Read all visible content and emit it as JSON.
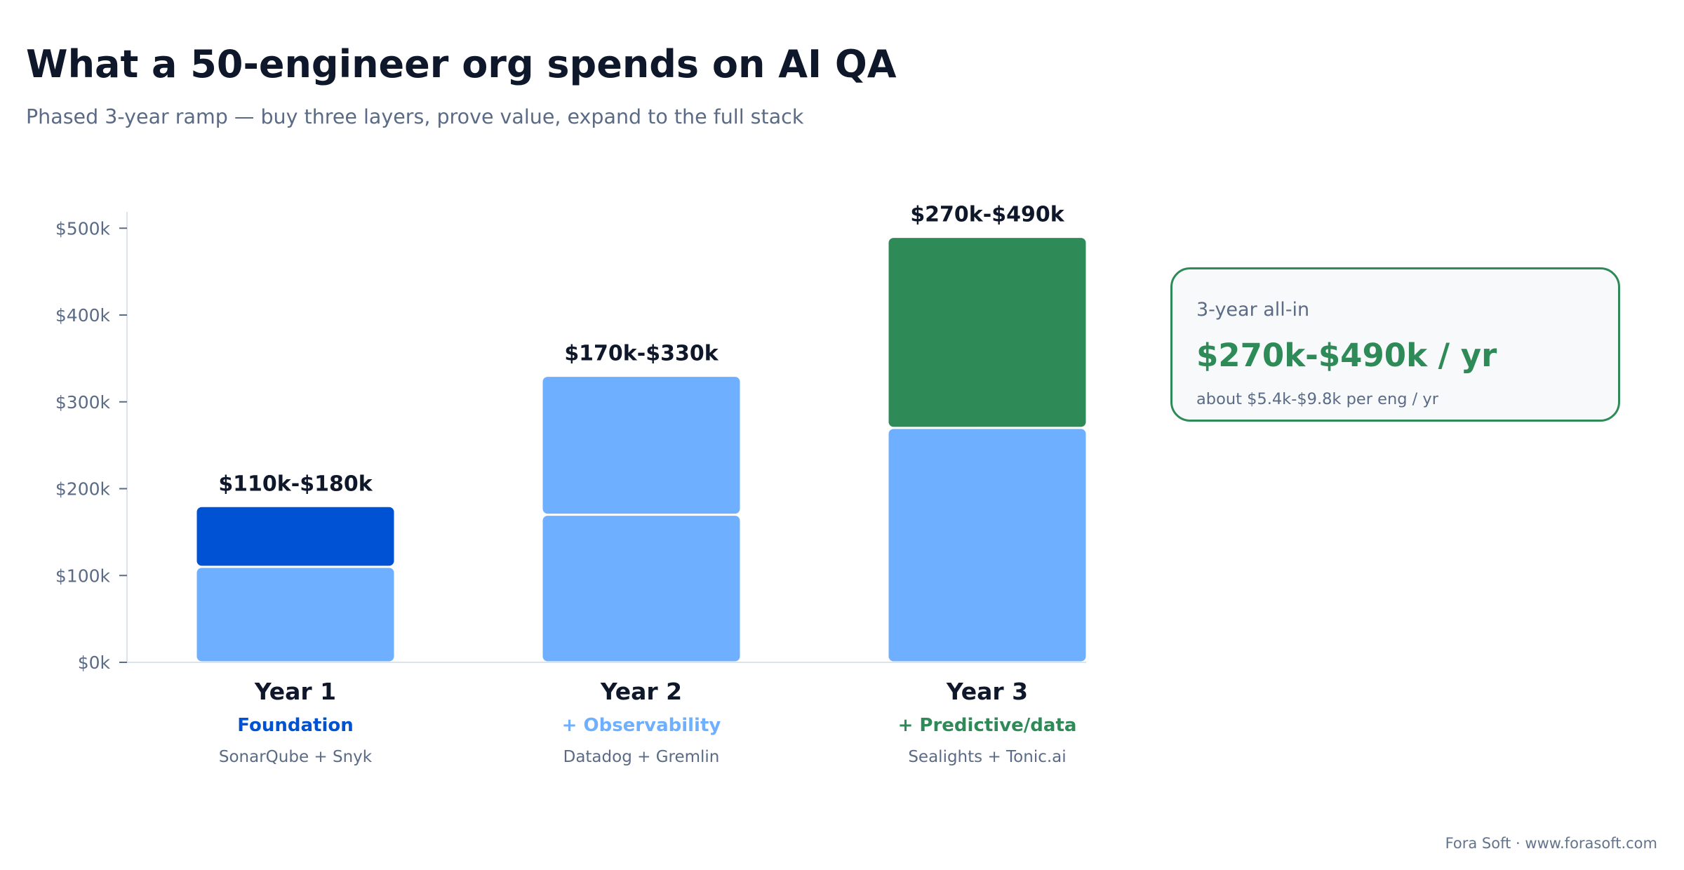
{
  "header": {
    "title": "What a 50-engineer org spends on AI QA",
    "subtitle": "Phased 3-year ramp — buy three layers, prove value, expand to the full stack"
  },
  "chart_data": {
    "type": "bar",
    "stacked": true,
    "ylim": [
      0,
      500
    ],
    "yticks": [
      0,
      100,
      200,
      300,
      400,
      500
    ],
    "ytick_labels": [
      "$0k",
      "$100k",
      "$200k",
      "$300k",
      "$400k",
      "$500k"
    ],
    "grid": false,
    "categories": [
      {
        "name": "Year 1",
        "phase": "Foundation",
        "tools": "SonarQube + Snyk",
        "total_label": "$110k-$180k",
        "accent": "#0052d4",
        "segments": [
          {
            "from": 0,
            "to": 110,
            "color": "#6eb0ff"
          },
          {
            "from": 110,
            "to": 180,
            "color": "#0052d4"
          }
        ]
      },
      {
        "name": "Year 2",
        "phase": "+ Observability",
        "tools": "Datadog + Gremlin",
        "total_label": "$170k-$330k",
        "accent": "#6eb0ff",
        "segments": [
          {
            "from": 0,
            "to": 170,
            "color": "#6eb0ff"
          },
          {
            "from": 170,
            "to": 330,
            "color": "#6eb0ff"
          }
        ]
      },
      {
        "name": "Year 3",
        "phase": "+ Predictive/data",
        "tools": "Sealights + Tonic.ai",
        "total_label": "$270k-$490k",
        "accent": "#2e8b57",
        "segments": [
          {
            "from": 0,
            "to": 270,
            "color": "#6eb0ff"
          },
          {
            "from": 270,
            "to": 490,
            "color": "#2e8b57"
          }
        ]
      }
    ]
  },
  "callout": {
    "label": "3-year all-in",
    "value": "$270k-$490k / yr",
    "note": "about $5.4k-$9.8k per eng / yr"
  },
  "footer": {
    "credit": "Fora Soft · www.forasoft.com"
  },
  "colors": {
    "title": "#0f172a",
    "muted": "#5b6b85",
    "axis": "#dbe3ec",
    "light_blue": "#6eb0ff",
    "dark_blue": "#0052d4",
    "green": "#2e8b57"
  }
}
